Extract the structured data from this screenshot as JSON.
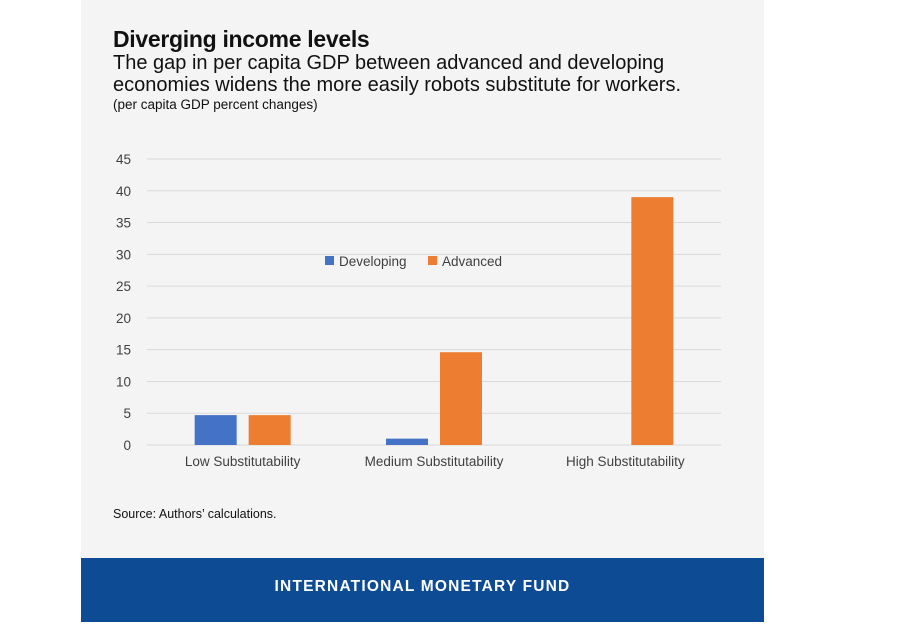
{
  "title": "Diverging income levels",
  "subtitle": "The gap in per capita GDP between advanced and developing economies widens the more easily robots substitute for workers.",
  "unit_note": "(per capita GDP percent changes)",
  "source": "Source: Authors’ calculations.",
  "footer": {
    "org": "INTERNATIONAL MONETARY FUND"
  },
  "colors": {
    "developing": "#4472c4",
    "advanced": "#ed7d31",
    "grid": "#d9d9d9",
    "footer": "#0d4c94"
  },
  "chart_data": {
    "type": "bar",
    "categories": [
      "Low Substitutability",
      "Medium Substitutability",
      "High Substitutability"
    ],
    "series": [
      {
        "name": "Developing",
        "values": [
          4.7,
          1.0,
          0
        ]
      },
      {
        "name": "Advanced",
        "values": [
          4.7,
          14.6,
          39
        ]
      }
    ],
    "ylim": [
      0,
      45
    ],
    "yticks": [
      "0",
      "5",
      "10",
      "15",
      "20",
      "25",
      "30",
      "35",
      "40",
      "45"
    ],
    "legend_position": "top-center",
    "grid": true
  }
}
